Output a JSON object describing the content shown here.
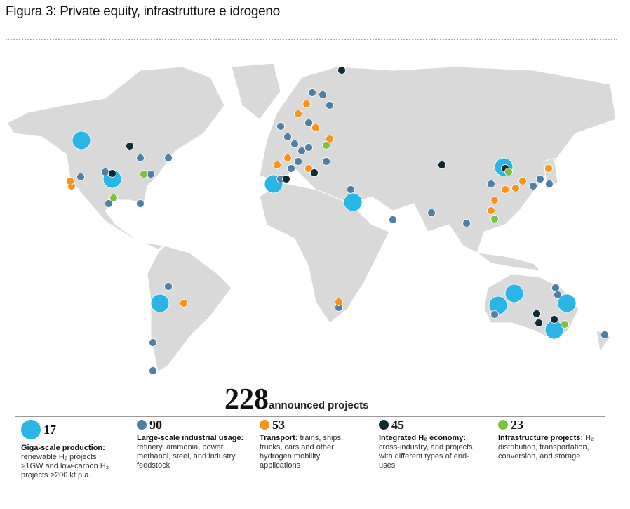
{
  "header": {
    "title": "Figura 3: Private equity, infrastrutture e idrogeno"
  },
  "total": {
    "count": "228",
    "label": "announced projects"
  },
  "legend": [
    {
      "count": "17",
      "heading": "Giga-scale production:",
      "text": "renewable H₂ projects >1GW and low-carbon H₂ projects >200 kt p.a."
    },
    {
      "count": "90",
      "heading": "Large-scale industrial usage:",
      "text": "refinery, ammonia, power, methanol, steel, and industry feedstock"
    },
    {
      "count": "53",
      "heading": "Transport:",
      "text": "trains, ships, trucks, cars and other hydrogen mobility applications"
    },
    {
      "count": "45",
      "heading": "Integrated H₂ economy:",
      "text": "cross-industry, and projects with different types of end-uses"
    },
    {
      "count": "23",
      "heading": "Infrastructure projects:",
      "text": "H₂ distribution, transportation, conversion, and storage"
    }
  ]
}
